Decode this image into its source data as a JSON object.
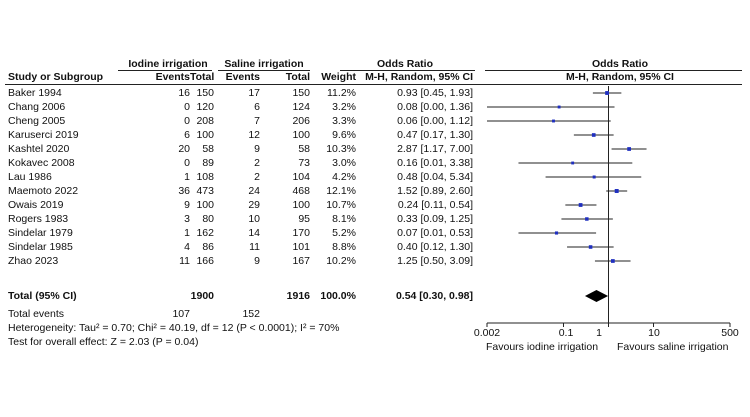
{
  "header": {
    "iodine_group": "Iodine irrigation",
    "saline_group": "Saline irrigation",
    "or_title": "Odds Ratio",
    "or_method": "M-H, Random, 95% CI",
    "plot_title": "Odds Ratio",
    "plot_method": "M-H, Random, 95% CI",
    "col_study": "Study or Subgroup",
    "col_events1": "Events",
    "col_total1": "Total",
    "col_events2": "Events",
    "col_total2": "Total",
    "col_weight": "Weight"
  },
  "studies": [
    {
      "name": "Baker 1994",
      "e1": "16",
      "t1": "150",
      "e2": "17",
      "t2": "150",
      "weight": "11.2%",
      "ci": "0.93 [0.45, 1.93]"
    },
    {
      "name": "Chang 2006",
      "e1": "0",
      "t1": "120",
      "e2": "6",
      "t2": "124",
      "weight": "3.2%",
      "ci": "0.08 [0.00, 1.36]"
    },
    {
      "name": "Cheng 2005",
      "e1": "0",
      "t1": "208",
      "e2": "7",
      "t2": "206",
      "weight": "3.3%",
      "ci": "0.06 [0.00, 1.12]"
    },
    {
      "name": "Karuserci 2019",
      "e1": "6",
      "t1": "100",
      "e2": "12",
      "t2": "100",
      "weight": "9.6%",
      "ci": "0.47 [0.17, 1.30]"
    },
    {
      "name": "Kashtel 2020",
      "e1": "20",
      "t1": "58",
      "e2": "9",
      "t2": "58",
      "weight": "10.3%",
      "ci": "2.87 [1.17, 7.00]"
    },
    {
      "name": "Kokavec 2008",
      "e1": "0",
      "t1": "89",
      "e2": "2",
      "t2": "73",
      "weight": "3.0%",
      "ci": "0.16 [0.01, 3.38]"
    },
    {
      "name": "Lau 1986",
      "e1": "1",
      "t1": "108",
      "e2": "2",
      "t2": "104",
      "weight": "4.2%",
      "ci": "0.48 [0.04, 5.34]"
    },
    {
      "name": "Maemoto 2022",
      "e1": "36",
      "t1": "473",
      "e2": "24",
      "t2": "468",
      "weight": "12.1%",
      "ci": "1.52 [0.89, 2.60]"
    },
    {
      "name": "Owais 2019",
      "e1": "9",
      "t1": "100",
      "e2": "29",
      "t2": "100",
      "weight": "10.7%",
      "ci": "0.24 [0.11, 0.54]"
    },
    {
      "name": "Rogers 1983",
      "e1": "3",
      "t1": "80",
      "e2": "10",
      "t2": "95",
      "weight": "8.1%",
      "ci": "0.33 [0.09, 1.25]"
    },
    {
      "name": "Sindelar 1979",
      "e1": "1",
      "t1": "162",
      "e2": "14",
      "t2": "170",
      "weight": "5.2%",
      "ci": "0.07 [0.01, 0.53]"
    },
    {
      "name": "Sindelar 1985",
      "e1": "4",
      "t1": "86",
      "e2": "11",
      "t2": "101",
      "weight": "8.8%",
      "ci": "0.40 [0.12, 1.30]"
    },
    {
      "name": "Zhao 2023",
      "e1": "11",
      "t1": "166",
      "e2": "9",
      "t2": "167",
      "weight": "10.2%",
      "ci": "1.25 [0.50, 3.09]"
    }
  ],
  "total": {
    "label": "Total (95% CI)",
    "t1": "1900",
    "t2": "1916",
    "weight": "100.0%",
    "ci": "0.54 [0.30, 0.98]"
  },
  "total_events": {
    "label": "Total events",
    "e1": "107",
    "e2": "152"
  },
  "heterogeneity": "Heterogeneity: Tau² = 0.70; Chi² = 40.19, df = 12 (P < 0.0001); I² = 70%",
  "overall_effect": "Test for overall effect: Z = 2.03 (P = 0.04)",
  "colors": {
    "marker": "#1f2fbf",
    "line": "#222222",
    "diamond": "#000000"
  },
  "chart_data": {
    "type": "forest",
    "title": "Odds Ratio",
    "subtitle": "M-H, Random, 95% CI",
    "x_scale": "log",
    "xlim": [
      0.002,
      500
    ],
    "ticks": [
      0.002,
      0.1,
      1,
      10,
      500
    ],
    "tick_labels": [
      "0.002",
      "0.1",
      "1",
      "10",
      "500"
    ],
    "reference_line": 1,
    "xlabel_left": "Favours iodine irrigation",
    "xlabel_right": "Favours saline irrigation",
    "studies": [
      {
        "name": "Baker 1994",
        "or": 0.93,
        "low": 0.45,
        "high": 1.93,
        "weight": 11.2
      },
      {
        "name": "Chang 2006",
        "or": 0.08,
        "low": 0.0,
        "high": 1.36,
        "weight": 3.2
      },
      {
        "name": "Cheng 2005",
        "or": 0.06,
        "low": 0.0,
        "high": 1.12,
        "weight": 3.3
      },
      {
        "name": "Karuserci 2019",
        "or": 0.47,
        "low": 0.17,
        "high": 1.3,
        "weight": 9.6
      },
      {
        "name": "Kashtel 2020",
        "or": 2.87,
        "low": 1.17,
        "high": 7.0,
        "weight": 10.3
      },
      {
        "name": "Kokavec 2008",
        "or": 0.16,
        "low": 0.01,
        "high": 3.38,
        "weight": 3.0
      },
      {
        "name": "Lau 1986",
        "or": 0.48,
        "low": 0.04,
        "high": 5.34,
        "weight": 4.2
      },
      {
        "name": "Maemoto 2022",
        "or": 1.52,
        "low": 0.89,
        "high": 2.6,
        "weight": 12.1
      },
      {
        "name": "Owais 2019",
        "or": 0.24,
        "low": 0.11,
        "high": 0.54,
        "weight": 10.7
      },
      {
        "name": "Rogers 1983",
        "or": 0.33,
        "low": 0.09,
        "high": 1.25,
        "weight": 8.1
      },
      {
        "name": "Sindelar 1979",
        "or": 0.07,
        "low": 0.01,
        "high": 0.53,
        "weight": 5.2
      },
      {
        "name": "Sindelar 1985",
        "or": 0.4,
        "low": 0.12,
        "high": 1.3,
        "weight": 8.8
      },
      {
        "name": "Zhao 2023",
        "or": 1.25,
        "low": 0.5,
        "high": 3.09,
        "weight": 10.2
      }
    ],
    "pooled": {
      "or": 0.54,
      "low": 0.3,
      "high": 0.98
    }
  }
}
